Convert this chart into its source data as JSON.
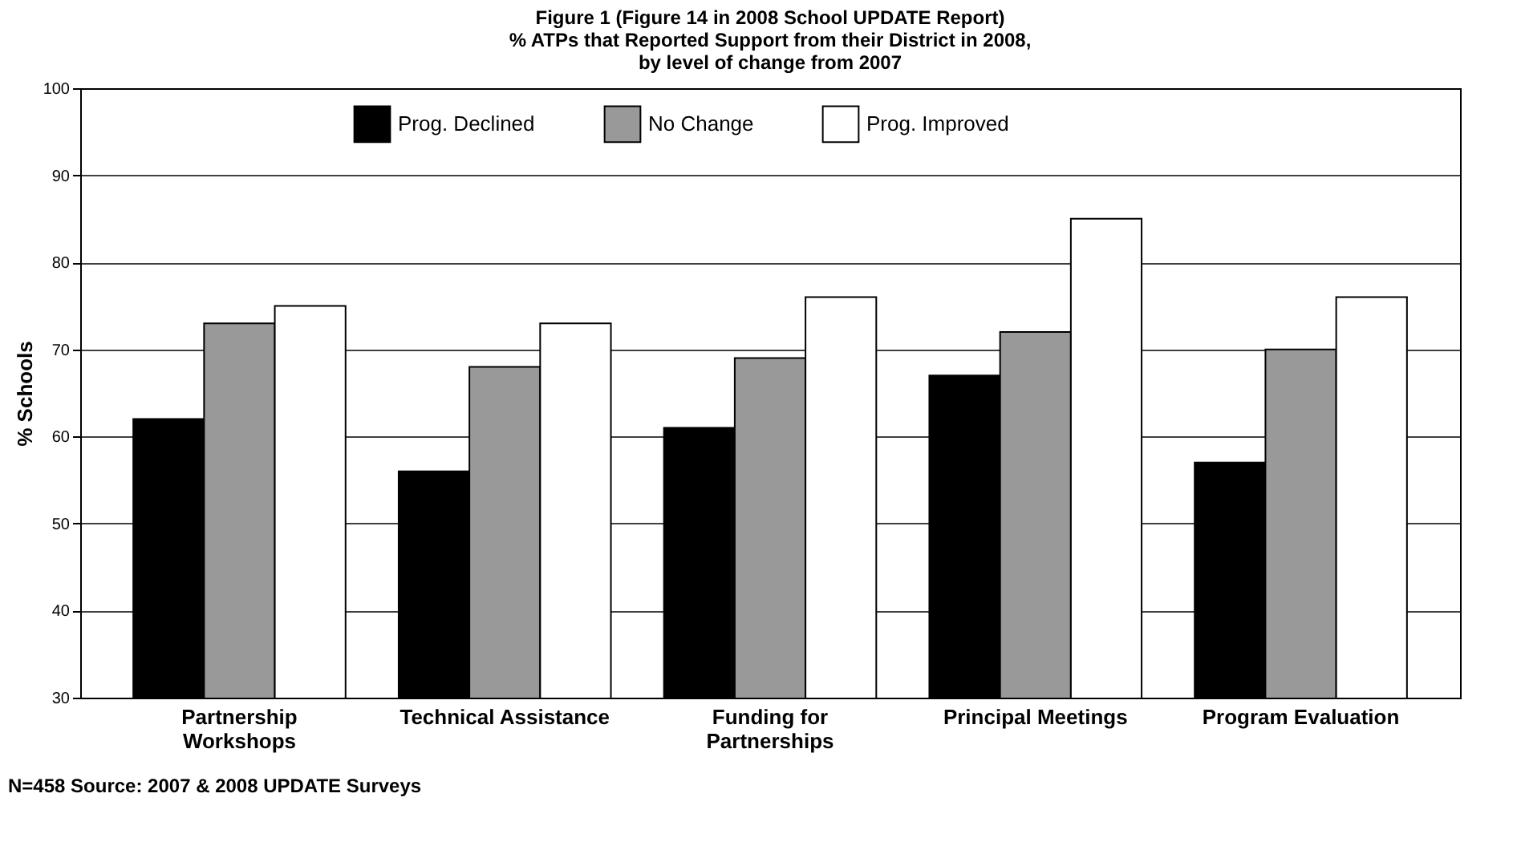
{
  "chart_data": {
    "type": "bar",
    "title": [
      "Figure 1   (Figure 14 in 2008 School UPDATE Report)",
      "% ATPs that Reported Support from their District in 2008,",
      "by level of change from 2007"
    ],
    "ylabel": "% Schools",
    "categories": [
      "Partnership Workshops",
      "Technical Assistance",
      "Funding for Partnerships",
      "Principal Meetings",
      "Program Evaluation"
    ],
    "series": [
      {
        "name": "Prog. Declined",
        "color": "#000000",
        "values": [
          62,
          56,
          61,
          67,
          57
        ]
      },
      {
        "name": "No Change",
        "color": "#999999",
        "values": [
          73,
          68,
          69,
          72,
          70
        ]
      },
      {
        "name": "Prog. Improved",
        "color": "#ffffff",
        "values": [
          75,
          73,
          76,
          85,
          76
        ]
      }
    ],
    "ylim": [
      30,
      100
    ],
    "yticks": [
      30,
      40,
      50,
      60,
      70,
      80,
      90,
      100
    ],
    "grid": "y",
    "legend": "top",
    "annotations": [
      "N=458 Source: 2007 & 2008 UPDATE Surveys"
    ]
  }
}
